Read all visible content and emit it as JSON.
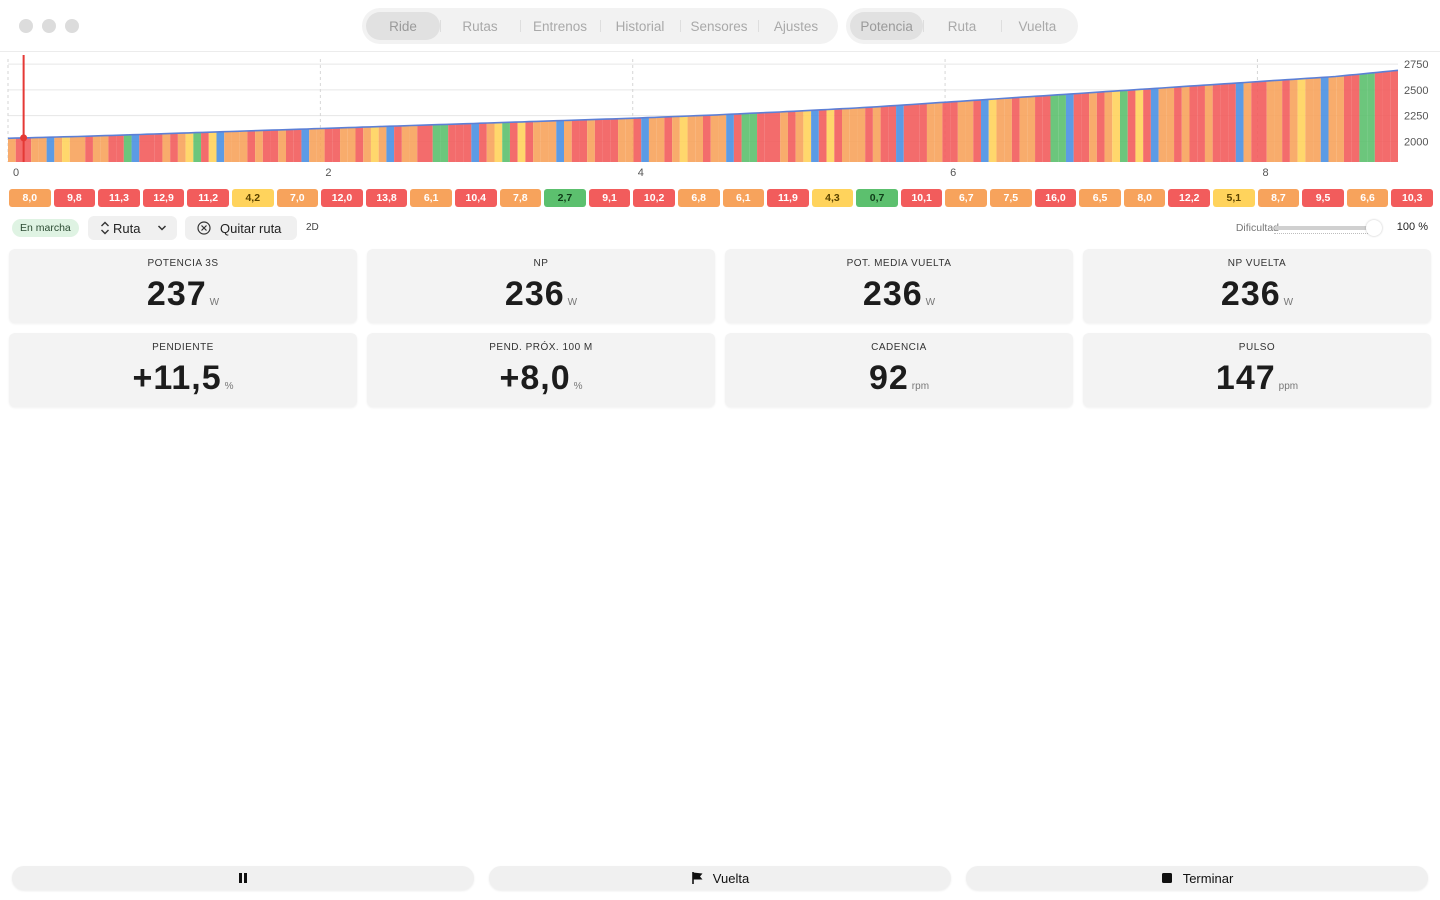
{
  "nav": {
    "main_tabs": [
      "Ride",
      "Rutas",
      "Entrenos",
      "Historial",
      "Sensores",
      "Ajustes"
    ],
    "main_selected": 0,
    "view_tabs": [
      "Potencia",
      "Ruta",
      "Vuelta"
    ],
    "view_selected": 0
  },
  "chart_data": {
    "type": "area",
    "title": "",
    "xlabel": "",
    "ylabel": "",
    "x_ticks": [
      0,
      2,
      4,
      6,
      8
    ],
    "y_ticks": [
      2000,
      2250,
      2500,
      2750
    ],
    "xlim": [
      0,
      8.9
    ],
    "ylim": [
      1800,
      2800
    ],
    "x": [
      0.0,
      0.5,
      1.0,
      1.5,
      2.0,
      2.5,
      3.0,
      3.5,
      4.0,
      4.5,
      5.0,
      5.5,
      6.0,
      6.5,
      7.0,
      7.5,
      8.0,
      8.5,
      8.9
    ],
    "elevation": [
      2030,
      2050,
      2075,
      2100,
      2125,
      2150,
      2175,
      2200,
      2225,
      2255,
      2290,
      2330,
      2380,
      2430,
      2480,
      2530,
      2580,
      2630,
      2690
    ],
    "current_position": 0.1,
    "grid": true,
    "colors": {
      "line": "#5c7fd6",
      "cursor": "#e53935",
      "grid": "#e6e6e6"
    }
  },
  "grades": [
    {
      "label": "8,0",
      "color": "#f7a35c"
    },
    {
      "label": "9,8",
      "color": "#f25c5c"
    },
    {
      "label": "11,3",
      "color": "#f25c5c"
    },
    {
      "label": "12,9",
      "color": "#f25c5c"
    },
    {
      "label": "11,2",
      "color": "#f25c5c"
    },
    {
      "label": "4,2",
      "color": "#ffd35c"
    },
    {
      "label": "7,0",
      "color": "#f7a35c"
    },
    {
      "label": "12,0",
      "color": "#f25c5c"
    },
    {
      "label": "13,8",
      "color": "#f25c5c"
    },
    {
      "label": "6,1",
      "color": "#f7a35c"
    },
    {
      "label": "10,4",
      "color": "#f25c5c"
    },
    {
      "label": "7,8",
      "color": "#f7a35c"
    },
    {
      "label": "2,7",
      "color": "#5cc06e"
    },
    {
      "label": "9,1",
      "color": "#f25c5c"
    },
    {
      "label": "10,2",
      "color": "#f25c5c"
    },
    {
      "label": "6,8",
      "color": "#f7a35c"
    },
    {
      "label": "6,1",
      "color": "#f7a35c"
    },
    {
      "label": "11,9",
      "color": "#f25c5c"
    },
    {
      "label": "4,3",
      "color": "#ffd35c"
    },
    {
      "label": "0,7",
      "color": "#5cc06e"
    },
    {
      "label": "10,1",
      "color": "#f25c5c"
    },
    {
      "label": "6,7",
      "color": "#f7a35c"
    },
    {
      "label": "7,5",
      "color": "#f7a35c"
    },
    {
      "label": "16,0",
      "color": "#f25c5c"
    },
    {
      "label": "6,5",
      "color": "#f7a35c"
    },
    {
      "label": "8,0",
      "color": "#f7a35c"
    },
    {
      "label": "12,2",
      "color": "#f25c5c"
    },
    {
      "label": "5,1",
      "color": "#ffd35c"
    },
    {
      "label": "8,7",
      "color": "#f7a35c"
    },
    {
      "label": "9,5",
      "color": "#f25c5c"
    },
    {
      "label": "6,6",
      "color": "#f7a35c"
    },
    {
      "label": "10,3",
      "color": "#f25c5c"
    }
  ],
  "controls": {
    "status": "En marcha",
    "route_select": "Ruta",
    "remove_route": "Quitar ruta",
    "mode": "2D",
    "difficulty_label": "Dificultad",
    "difficulty_value": "100 %",
    "difficulty_level": 1.0
  },
  "tiles": [
    {
      "label": "POTENCIA 3S",
      "value": "237",
      "unit": "W"
    },
    {
      "label": "NP",
      "value": "236",
      "unit": "W"
    },
    {
      "label": "POT. MEDIA VUELTA",
      "value": "236",
      "unit": "W"
    },
    {
      "label": "NP VUELTA",
      "value": "236",
      "unit": "W"
    },
    {
      "label": "PENDIENTE",
      "value": "+11,5",
      "unit": "%"
    },
    {
      "label": "PEND. PRÓX. 100 M",
      "value": "+8,0",
      "unit": "%"
    },
    {
      "label": "CADENCIA",
      "value": "92",
      "unit": "rpm"
    },
    {
      "label": "PULSO",
      "value": "147",
      "unit": "ppm"
    }
  ],
  "bottom": {
    "pause_icon": "pause-icon",
    "lap_label": "Vuelta",
    "lap_icon": "flag-icon",
    "finish_label": "Terminar",
    "finish_icon": "stop-icon"
  }
}
